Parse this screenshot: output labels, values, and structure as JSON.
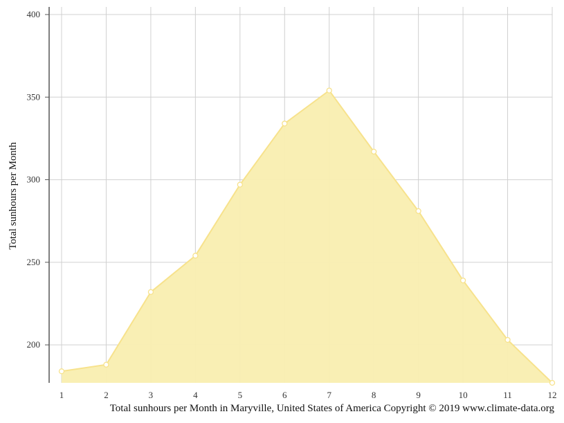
{
  "chart_data": {
    "type": "area",
    "x": [
      1,
      2,
      3,
      4,
      5,
      6,
      7,
      8,
      9,
      10,
      11,
      12
    ],
    "series": [
      {
        "values": [
          184,
          188,
          232,
          254,
          297,
          334,
          354,
          317,
          281,
          239,
          203,
          177
        ]
      }
    ],
    "ylabel": "Total sunhours per Month",
    "xlabel": "",
    "ylim": [
      177,
      400
    ],
    "yticks": [
      200,
      250,
      300,
      350,
      400
    ],
    "xticks": [
      "1",
      "2",
      "3",
      "4",
      "5",
      "6",
      "7",
      "8",
      "9",
      "10",
      "11",
      "12"
    ],
    "grid": true,
    "colors": {
      "fill": "#f9eeb0",
      "line": "#f7e28c",
      "marker_fill": "#ffffff",
      "grid": "#d0d0d0",
      "axis": "#555555"
    }
  },
  "caption": "Total sunhours per Month in Maryville, United States of America Copyright © 2019 www.climate-data.org"
}
